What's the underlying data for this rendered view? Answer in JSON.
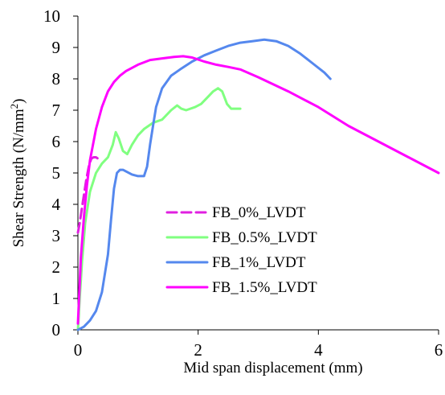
{
  "chart_data": {
    "type": "line",
    "title": "",
    "xlabel": "Mid span displacement (mm)",
    "ylabel": "Shear Strength (N/mm",
    "ylabel_sup": "2",
    "ylabel_close": ")",
    "xlim": [
      0,
      6
    ],
    "ylim": [
      0,
      10
    ],
    "x_ticks": [
      0,
      2,
      4,
      6
    ],
    "y_ticks": [
      0,
      1,
      2,
      3,
      4,
      5,
      6,
      7,
      8,
      9,
      10
    ],
    "grid": false,
    "legend_position": "lower-right",
    "series": [
      {
        "name": "FB_0%_LVDT",
        "color": "#e020e0",
        "dash": true,
        "x": [
          0.0,
          0.03,
          0.06,
          0.1,
          0.14,
          0.18,
          0.22,
          0.26,
          0.3,
          0.34
        ],
        "y": [
          3.1,
          3.4,
          3.8,
          4.3,
          4.8,
          5.2,
          5.45,
          5.5,
          5.5,
          5.45
        ]
      },
      {
        "name": "FB_0.5%_LVDT",
        "color": "#80ff80",
        "dash": false,
        "x": [
          0.0,
          0.03,
          0.07,
          0.12,
          0.2,
          0.3,
          0.4,
          0.5,
          0.58,
          0.63,
          0.68,
          0.75,
          0.82,
          0.9,
          1.0,
          1.1,
          1.25,
          1.4,
          1.55,
          1.65,
          1.72,
          1.8,
          1.95,
          2.05,
          2.15,
          2.25,
          2.33,
          2.4,
          2.48,
          2.55,
          2.7
        ],
        "y": [
          0.0,
          1.0,
          2.2,
          3.4,
          4.4,
          5.0,
          5.3,
          5.5,
          5.9,
          6.3,
          6.1,
          5.7,
          5.6,
          5.9,
          6.2,
          6.4,
          6.6,
          6.7,
          7.0,
          7.15,
          7.05,
          7.0,
          7.1,
          7.2,
          7.4,
          7.6,
          7.7,
          7.6,
          7.2,
          7.05,
          7.05
        ]
      },
      {
        "name": "FB_1%_LVDT",
        "color": "#5588ee",
        "dash": false,
        "x": [
          0.0,
          0.05,
          0.1,
          0.2,
          0.3,
          0.4,
          0.5,
          0.55,
          0.6,
          0.65,
          0.7,
          0.75,
          0.8,
          0.9,
          1.0,
          1.1,
          1.15,
          1.2,
          1.25,
          1.3,
          1.4,
          1.55,
          1.7,
          1.9,
          2.1,
          2.3,
          2.5,
          2.7,
          2.9,
          3.1,
          3.3,
          3.5,
          3.7,
          3.9,
          4.1,
          4.2
        ],
        "y": [
          0.0,
          0.05,
          0.1,
          0.3,
          0.6,
          1.2,
          2.4,
          3.5,
          4.5,
          5.0,
          5.1,
          5.1,
          5.05,
          4.95,
          4.9,
          4.9,
          5.2,
          5.9,
          6.5,
          7.1,
          7.7,
          8.1,
          8.3,
          8.55,
          8.75,
          8.9,
          9.05,
          9.15,
          9.2,
          9.25,
          9.2,
          9.05,
          8.8,
          8.5,
          8.2,
          8.0
        ]
      },
      {
        "name": "FB_1.5%_LVDT",
        "color": "#ff00ff",
        "dash": false,
        "x": [
          0.0,
          0.05,
          0.1,
          0.15,
          0.2,
          0.3,
          0.4,
          0.5,
          0.6,
          0.7,
          0.8,
          1.0,
          1.2,
          1.4,
          1.6,
          1.75,
          1.9,
          2.1,
          2.3,
          2.5,
          2.7,
          3.0,
          3.5,
          4.0,
          4.5,
          5.0,
          5.5,
          6.0
        ],
        "y": [
          0.2,
          2.3,
          3.6,
          4.6,
          5.4,
          6.4,
          7.1,
          7.6,
          7.9,
          8.1,
          8.25,
          8.45,
          8.6,
          8.65,
          8.7,
          8.72,
          8.68,
          8.55,
          8.45,
          8.38,
          8.3,
          8.05,
          7.6,
          7.1,
          6.5,
          6.0,
          5.5,
          5.0
        ]
      }
    ]
  }
}
